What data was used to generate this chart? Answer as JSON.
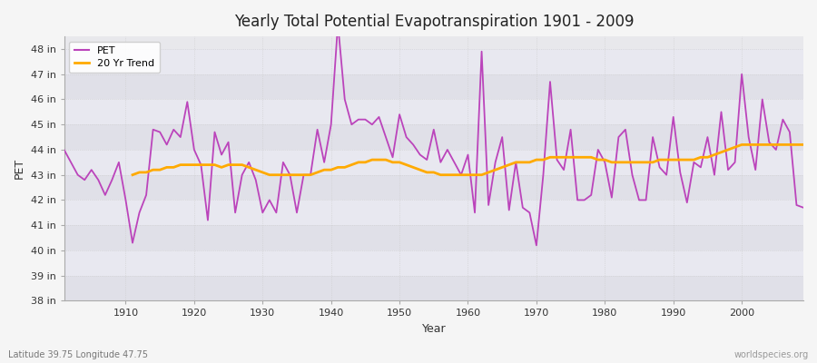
{
  "title": "Yearly Total Potential Evapotranspiration 1901 - 2009",
  "xlabel": "Year",
  "ylabel": "PET",
  "footer_left": "Latitude 39.75 Longitude 47.75",
  "footer_right": "worldspecies.org",
  "pet_color": "#bb44bb",
  "trend_color": "#ffaa00",
  "bg_outer": "#f0f0f0",
  "bg_inner_top": "#dcdce8",
  "bg_inner_bot": "#e8e8f0",
  "ylim": [
    38,
    48.5
  ],
  "yticks": [
    38,
    39,
    40,
    41,
    42,
    43,
    44,
    45,
    46,
    47,
    48
  ],
  "xlim": [
    1901,
    2009
  ],
  "xticks": [
    1910,
    1920,
    1930,
    1940,
    1950,
    1960,
    1970,
    1980,
    1990,
    2000
  ],
  "years": [
    1901,
    1902,
    1903,
    1904,
    1905,
    1906,
    1907,
    1908,
    1909,
    1910,
    1911,
    1912,
    1913,
    1914,
    1915,
    1916,
    1917,
    1918,
    1919,
    1920,
    1921,
    1922,
    1923,
    1924,
    1925,
    1926,
    1927,
    1928,
    1929,
    1930,
    1931,
    1932,
    1933,
    1934,
    1935,
    1936,
    1937,
    1938,
    1939,
    1940,
    1941,
    1942,
    1943,
    1944,
    1945,
    1946,
    1947,
    1948,
    1949,
    1950,
    1951,
    1952,
    1953,
    1954,
    1955,
    1956,
    1957,
    1958,
    1959,
    1960,
    1961,
    1962,
    1963,
    1964,
    1965,
    1966,
    1967,
    1968,
    1969,
    1970,
    1971,
    1972,
    1973,
    1974,
    1975,
    1976,
    1977,
    1978,
    1979,
    1980,
    1981,
    1982,
    1983,
    1984,
    1985,
    1986,
    1987,
    1988,
    1989,
    1990,
    1991,
    1992,
    1993,
    1994,
    1995,
    1996,
    1997,
    1998,
    1999,
    2000,
    2001,
    2002,
    2003,
    2004,
    2005,
    2006,
    2007,
    2008,
    2009
  ],
  "pet_values": [
    44.0,
    43.5,
    43.0,
    42.8,
    43.2,
    42.8,
    42.2,
    42.8,
    43.5,
    42.0,
    40.3,
    41.5,
    42.2,
    44.8,
    44.7,
    44.2,
    44.8,
    44.5,
    45.9,
    44.0,
    43.4,
    41.2,
    44.7,
    43.8,
    44.3,
    41.5,
    43.0,
    43.5,
    42.8,
    41.5,
    42.0,
    41.5,
    43.5,
    43.0,
    41.5,
    43.0,
    43.0,
    44.8,
    43.5,
    45.0,
    49.0,
    46.0,
    45.0,
    45.2,
    45.2,
    45.0,
    45.3,
    44.5,
    43.7,
    45.4,
    44.5,
    44.2,
    43.8,
    43.6,
    44.8,
    43.5,
    44.0,
    43.5,
    43.0,
    43.8,
    41.5,
    47.9,
    41.8,
    43.5,
    44.5,
    41.6,
    43.5,
    41.7,
    41.5,
    40.2,
    43.0,
    46.7,
    43.6,
    43.2,
    44.8,
    42.0,
    42.0,
    42.2,
    44.0,
    43.5,
    42.1,
    44.5,
    44.8,
    43.0,
    42.0,
    42.0,
    44.5,
    43.3,
    43.0,
    45.3,
    43.1,
    41.9,
    43.5,
    43.3,
    44.5,
    43.0,
    45.5,
    43.2,
    43.5,
    47.0,
    44.5,
    43.2,
    46.0,
    44.3,
    44.0,
    45.2,
    44.7,
    41.8,
    41.7
  ],
  "trend_values": [
    null,
    null,
    null,
    null,
    null,
    null,
    null,
    null,
    null,
    null,
    43.0,
    43.1,
    43.1,
    43.2,
    43.2,
    43.3,
    43.3,
    43.4,
    43.4,
    43.4,
    43.4,
    43.4,
    43.4,
    43.3,
    43.4,
    43.4,
    43.4,
    43.3,
    43.2,
    43.1,
    43.0,
    43.0,
    43.0,
    43.0,
    43.0,
    43.0,
    43.0,
    43.1,
    43.2,
    43.2,
    43.3,
    43.3,
    43.4,
    43.5,
    43.5,
    43.6,
    43.6,
    43.6,
    43.5,
    43.5,
    43.4,
    43.3,
    43.2,
    43.1,
    43.1,
    43.0,
    43.0,
    43.0,
    43.0,
    43.0,
    43.0,
    43.0,
    43.1,
    43.2,
    43.3,
    43.4,
    43.5,
    43.5,
    43.5,
    43.6,
    43.6,
    43.7,
    43.7,
    43.7,
    43.7,
    43.7,
    43.7,
    43.7,
    43.6,
    43.6,
    43.5,
    43.5,
    43.5,
    43.5,
    43.5,
    43.5,
    43.5,
    43.6,
    43.6,
    43.6,
    43.6,
    43.6,
    43.6,
    43.7,
    43.7,
    43.8,
    43.9,
    44.0,
    44.1,
    44.2,
    44.2,
    44.2,
    44.2,
    44.2,
    44.2,
    44.2,
    44.2,
    44.2,
    44.2
  ]
}
